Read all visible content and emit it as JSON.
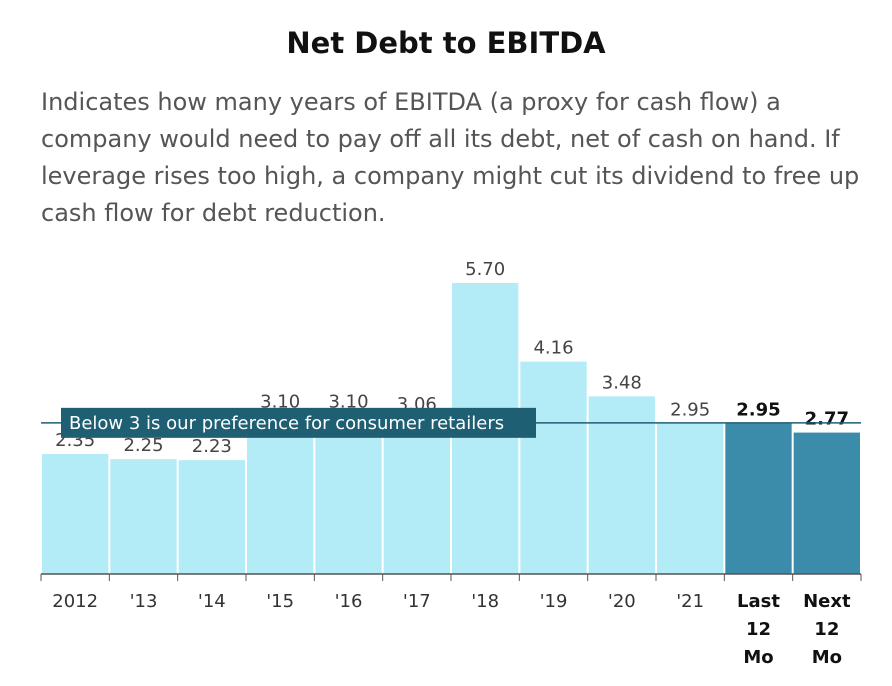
{
  "header": {
    "title": "Net Debt to EBITDA",
    "subtitle": "Indicates how many years of EBITDA (a proxy for cash flow) a company would need to pay off all its debt, net of cash on hand. If leverage rises too high, a company might cut its dividend to free up cash flow for debt reduction."
  },
  "chart_data": {
    "type": "bar",
    "categories": [
      "2012",
      "'13",
      "'14",
      "'15",
      "'16",
      "'17",
      "'18",
      "'19",
      "'20",
      "'21",
      "Last 12 Mo",
      "Next 12 Mo"
    ],
    "values": [
      2.35,
      2.25,
      2.23,
      3.1,
      3.1,
      3.06,
      5.7,
      4.16,
      3.48,
      2.95,
      2.95,
      2.77
    ],
    "value_labels": [
      "2.35",
      "2.25",
      "2.23",
      "3.10",
      "3.10",
      "3.06",
      "5.70",
      "4.16",
      "3.48",
      "2.95",
      "2.95",
      "2.77"
    ],
    "highlighted": [
      false,
      false,
      false,
      false,
      false,
      false,
      false,
      false,
      false,
      false,
      true,
      true
    ],
    "ylim": [
      0,
      6
    ],
    "reference_line": {
      "value": 3,
      "label": "Below 3 is our preference for consumer retailers"
    },
    "colors": {
      "bar": "#b3ecf7",
      "highlight": "#3b8bab",
      "reference": "#1f5f73",
      "axis": "#555555"
    }
  }
}
